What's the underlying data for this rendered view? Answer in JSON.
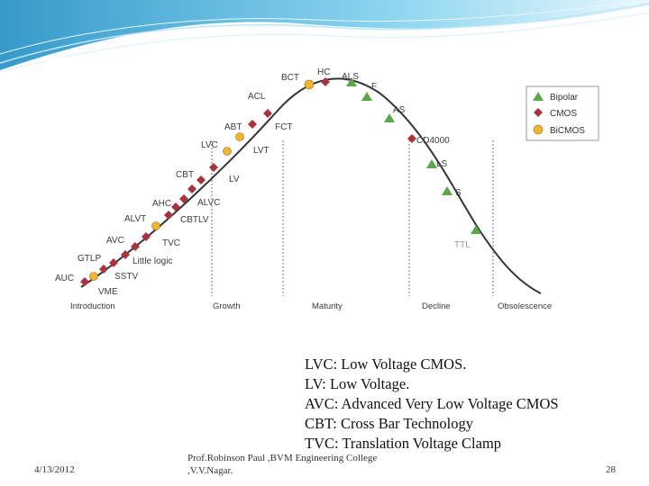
{
  "header": {
    "accent": "#3fa9d6"
  },
  "figure": {
    "phases": [
      "Introduction",
      "Growth",
      "Maturity",
      "Decline",
      "Obsolescence"
    ],
    "legend": [
      {
        "label": "Bipolar",
        "marker": "triangle",
        "color": "#5aa84a"
      },
      {
        "label": "CMOS",
        "marker": "diamond",
        "color": "#a8323e"
      },
      {
        "label": "BiCMOS",
        "marker": "circle",
        "color": "#f2b631"
      }
    ],
    "families": [
      {
        "label": "AUC",
        "type": "CMOS"
      },
      {
        "label": "VME",
        "type": "BiCMOS"
      },
      {
        "label": "GTLP",
        "type": "CMOS"
      },
      {
        "label": "SSTV",
        "type": "CMOS"
      },
      {
        "label": "AVC",
        "type": "CMOS"
      },
      {
        "label": "Little logic",
        "type": "CMOS"
      },
      {
        "label": "TVC",
        "type": "CMOS"
      },
      {
        "label": "ALVT",
        "type": "BiCMOS"
      },
      {
        "label": "CBTLV",
        "type": "CMOS"
      },
      {
        "label": "AHC",
        "type": "CMOS"
      },
      {
        "label": "ALVC",
        "type": "CMOS"
      },
      {
        "label": "CBT",
        "type": "CMOS"
      },
      {
        "label": "LV",
        "type": "CMOS"
      },
      {
        "label": "LVC",
        "type": "CMOS"
      },
      {
        "label": "LVT",
        "type": "BiCMOS"
      },
      {
        "label": "ABT",
        "type": "BiCMOS"
      },
      {
        "label": "FCT",
        "type": "CMOS"
      },
      {
        "label": "ACL",
        "type": "CMOS"
      },
      {
        "label": "BCT",
        "type": "BiCMOS"
      },
      {
        "label": "HC",
        "type": "CMOS"
      },
      {
        "label": "ALS",
        "type": "Bipolar"
      },
      {
        "label": "F",
        "type": "Bipolar"
      },
      {
        "label": "AS",
        "type": "Bipolar"
      },
      {
        "label": "CD4000",
        "type": "CMOS"
      },
      {
        "label": "LS",
        "type": "Bipolar"
      },
      {
        "label": "S",
        "type": "Bipolar"
      },
      {
        "label": "TTL",
        "type": "Bipolar"
      }
    ]
  },
  "definitions": [
    "LVC: Low Voltage CMOS.",
    "LV: Low Voltage.",
    "AVC: Advanced Very Low Voltage CMOS",
    "CBT: Cross Bar Technology",
    "TVC: Translation Voltage Clamp"
  ],
  "footer": {
    "date": "4/13/2012",
    "author_line1": "Prof.Robinson Paul ,BVM Engineering College",
    "author_line2": ",V.V.Nagar.",
    "page": "28"
  }
}
